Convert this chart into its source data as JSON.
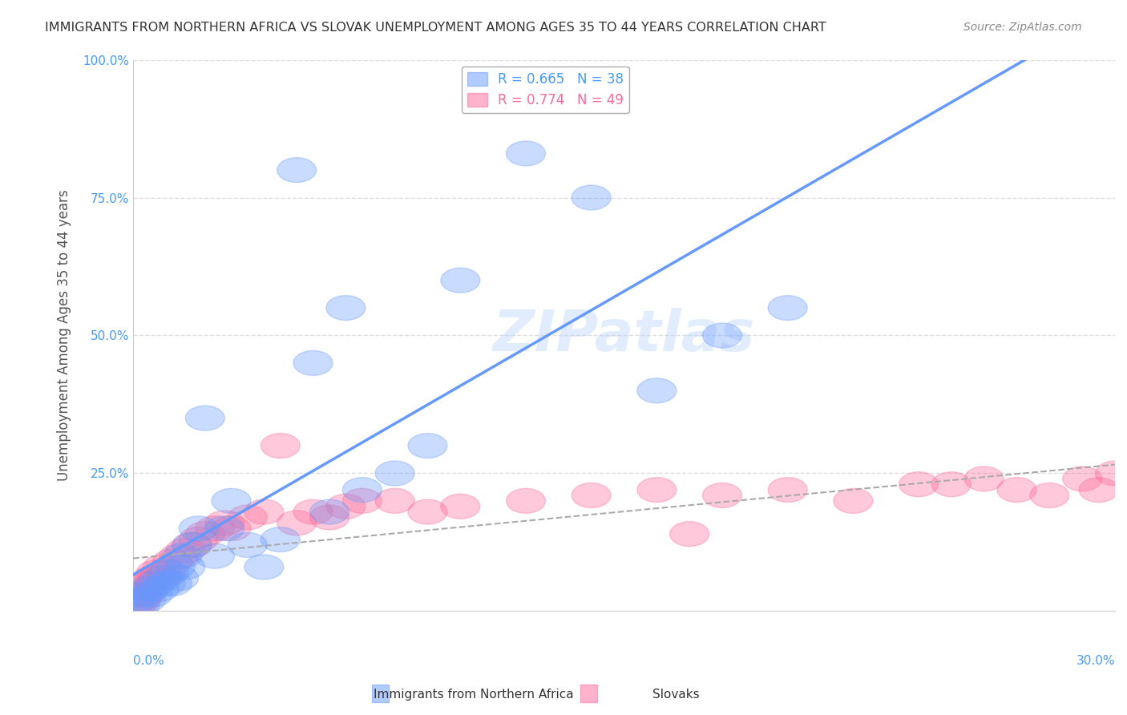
{
  "title": "IMMIGRANTS FROM NORTHERN AFRICA VS SLOVAK UNEMPLOYMENT AMONG AGES 35 TO 44 YEARS CORRELATION CHART",
  "source": "Source: ZipAtlas.com",
  "xlabel": "",
  "ylabel": "Unemployment Among Ages 35 to 44 years",
  "x_label_bottom_left": "0.0%",
  "x_label_bottom_right": "30.0%",
  "xlim": [
    0.0,
    30.0
  ],
  "ylim": [
    0.0,
    100.0
  ],
  "yticks": [
    0.0,
    25.0,
    50.0,
    75.0,
    100.0
  ],
  "ytick_labels": [
    "",
    "25.0%",
    "50.0%",
    "75.0%",
    "100.0%"
  ],
  "series1_name": "Immigrants from Northern Africa",
  "series1_color": "#6699ff",
  "series1_R": 0.665,
  "series1_N": 38,
  "series2_name": "Slovaks",
  "series2_color": "#ff6699",
  "series2_R": 0.774,
  "series2_N": 49,
  "background_color": "#ffffff",
  "grid_color": "#dddddd",
  "watermark": "ZIPatlas",
  "series1_x": [
    0.1,
    0.2,
    0.3,
    0.4,
    0.5,
    0.6,
    0.7,
    0.8,
    0.9,
    1.0,
    1.1,
    1.2,
    1.3,
    1.4,
    1.5,
    1.6,
    1.8,
    2.0,
    2.2,
    2.5,
    2.8,
    3.0,
    3.5,
    4.0,
    4.5,
    5.0,
    5.5,
    6.0,
    6.5,
    7.0,
    8.0,
    9.0,
    10.0,
    12.0,
    14.0,
    16.0,
    18.0,
    20.0
  ],
  "series1_y": [
    2,
    1,
    3,
    2,
    4,
    3,
    5,
    4,
    6,
    5,
    7,
    5,
    8,
    6,
    10,
    8,
    12,
    15,
    35,
    10,
    15,
    20,
    12,
    8,
    13,
    80,
    45,
    18,
    55,
    22,
    25,
    30,
    60,
    83,
    75,
    40,
    50,
    55
  ],
  "series2_x": [
    0.1,
    0.15,
    0.2,
    0.25,
    0.3,
    0.35,
    0.4,
    0.45,
    0.5,
    0.6,
    0.7,
    0.8,
    0.9,
    1.0,
    1.2,
    1.4,
    1.6,
    1.8,
    2.0,
    2.2,
    2.5,
    2.8,
    3.0,
    3.5,
    4.0,
    4.5,
    5.0,
    5.5,
    6.0,
    6.5,
    7.0,
    8.0,
    9.0,
    10.0,
    12.0,
    14.0,
    16.0,
    17.0,
    18.0,
    20.0,
    22.0,
    24.0,
    25.0,
    26.0,
    27.0,
    28.0,
    29.0,
    29.5,
    30.0
  ],
  "series2_y": [
    1,
    2,
    3,
    2,
    4,
    3,
    5,
    4,
    5,
    6,
    7,
    6,
    8,
    7,
    9,
    10,
    11,
    12,
    13,
    14,
    15,
    16,
    15,
    17,
    18,
    30,
    16,
    18,
    17,
    19,
    20,
    20,
    18,
    19,
    20,
    21,
    22,
    14,
    21,
    22,
    20,
    23,
    23,
    24,
    22,
    21,
    24,
    22,
    25
  ]
}
